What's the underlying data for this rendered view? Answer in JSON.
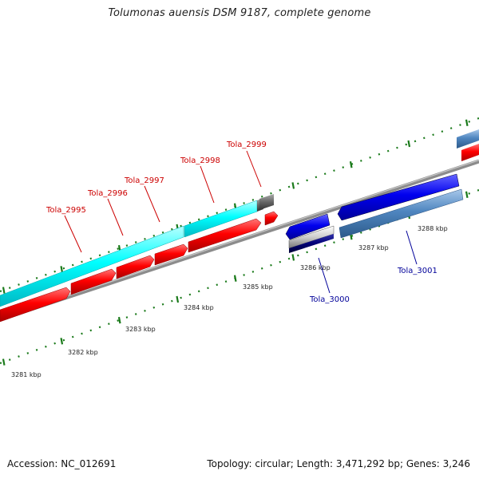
{
  "title": "Tolumonas auensis DSM 9187, complete genome",
  "footer": {
    "accession": "Accession: NC_012691",
    "topology": "Topology: circular; Length: 3,471,292 bp; Genes: 3,246"
  },
  "colors": {
    "forward_cds": "#ff0000",
    "forward_gene": "#00e5e5",
    "reverse_cds": "#0000ee",
    "reverse_gene": "#4a7fb8",
    "backbone": "#8c8c8c",
    "tick": "#1a7a1a",
    "label_forward": "#cc0000",
    "label_reverse": "#000099"
  },
  "scale_labels": [
    "3281 kbp",
    "3282 kbp",
    "3283 kbp",
    "3284 kbp",
    "3285 kbp",
    "3286 kbp",
    "3287 kbp",
    "3288 kbp"
  ],
  "genes": {
    "forward": [
      "Tola_2995",
      "Tola_2996",
      "Tola_2997",
      "Tola_2998",
      "Tola_2999"
    ],
    "reverse": [
      "Tola_3000",
      "Tola_3001"
    ]
  }
}
